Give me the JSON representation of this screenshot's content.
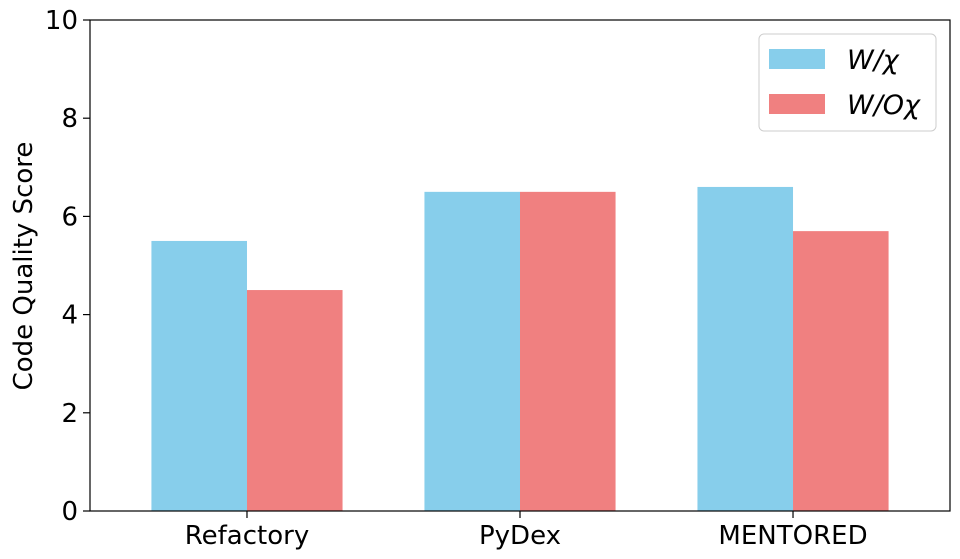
{
  "chart_data": {
    "type": "bar",
    "categories": [
      "Refactory",
      "PyDex",
      "MENTORED"
    ],
    "series": [
      {
        "name": "W/χ",
        "values": [
          5.5,
          6.5,
          6.6
        ],
        "color": "#87CEEB"
      },
      {
        "name": "W/Oχ",
        "values": [
          4.5,
          6.5,
          5.7
        ],
        "color": "#F08080"
      }
    ],
    "title": "",
    "xlabel": "",
    "ylabel": "Code Quality Score",
    "ylim": [
      0,
      10
    ],
    "yticks": [
      0,
      2,
      4,
      6,
      8,
      10
    ],
    "grid": false,
    "legend_position": "top-right"
  }
}
